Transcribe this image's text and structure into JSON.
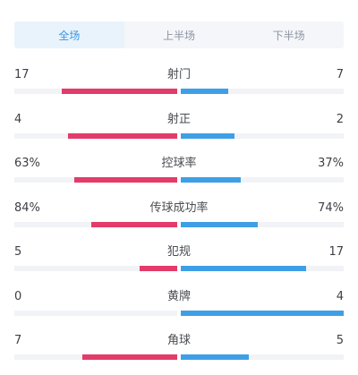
{
  "tabs": [
    {
      "label": "全场",
      "active": true
    },
    {
      "label": "上半场",
      "active": false
    },
    {
      "label": "下半场",
      "active": false
    }
  ],
  "colors": {
    "home": "#e33b6a",
    "away": "#3f9fe6",
    "active_tab": "#3a96e6"
  },
  "stats": [
    {
      "label": "射门",
      "left": "17",
      "right": "7",
      "left_fill": 0.71,
      "right_fill": 0.29
    },
    {
      "label": "射正",
      "left": "4",
      "right": "2",
      "left_fill": 0.67,
      "right_fill": 0.33
    },
    {
      "label": "控球率",
      "left": "63%",
      "right": "37%",
      "left_fill": 0.63,
      "right_fill": 0.37
    },
    {
      "label": "传球成功率",
      "left": "84%",
      "right": "74%",
      "left_fill": 0.53,
      "right_fill": 0.47
    },
    {
      "label": "犯规",
      "left": "5",
      "right": "17",
      "left_fill": 0.23,
      "right_fill": 0.77
    },
    {
      "label": "黄牌",
      "left": "0",
      "right": "4",
      "left_fill": 0.0,
      "right_fill": 1.0
    },
    {
      "label": "角球",
      "left": "7",
      "right": "5",
      "left_fill": 0.58,
      "right_fill": 0.42
    }
  ]
}
